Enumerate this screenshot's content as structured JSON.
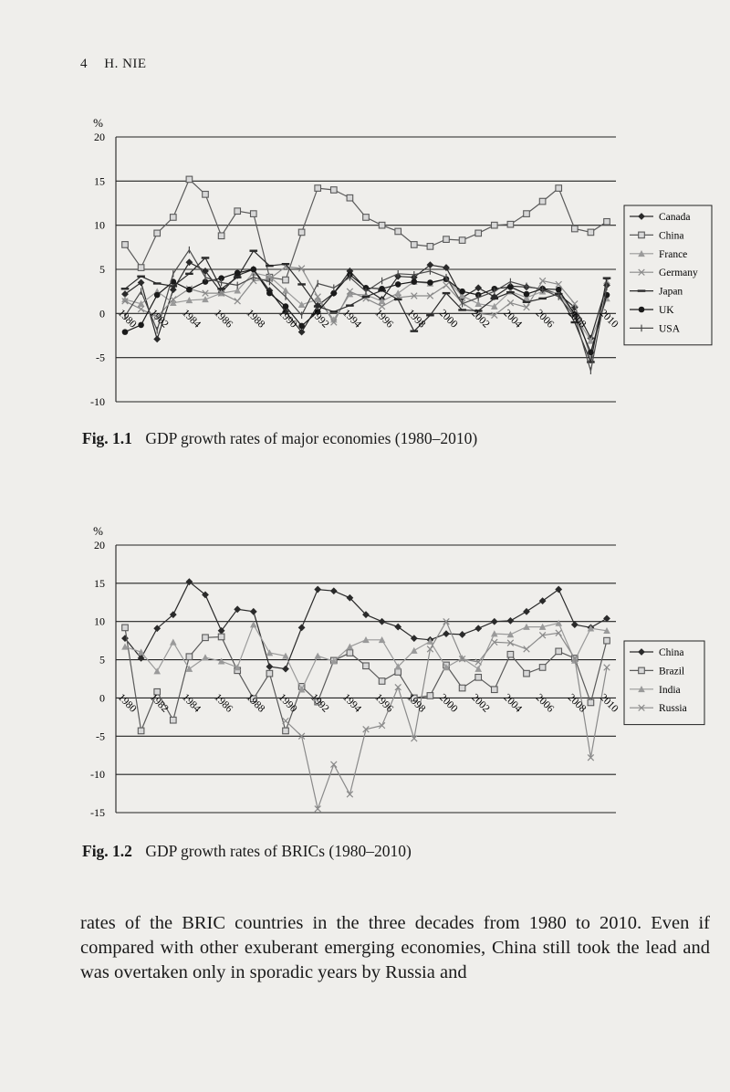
{
  "header": {
    "page_number": "4",
    "author": "H. NIE"
  },
  "figures": [
    {
      "caption_number": "Fig. 1.1",
      "caption_text": "GDP growth rates of major economies (1980–2010)",
      "chart_data": {
        "type": "line",
        "ylabel": "%",
        "ylim": [
          -10,
          20
        ],
        "yticks": [
          20,
          15,
          10,
          5,
          0,
          -5,
          -10
        ],
        "x": [
          1980,
          1981,
          1982,
          1983,
          1984,
          1985,
          1986,
          1987,
          1988,
          1989,
          1990,
          1991,
          1992,
          1993,
          1994,
          1995,
          1996,
          1997,
          1998,
          1999,
          2000,
          2001,
          2002,
          2003,
          2004,
          2005,
          2006,
          2007,
          2008,
          2009,
          2010
        ],
        "xtick_labels": [
          "1980",
          "1982",
          "1984",
          "1986",
          "1988",
          "1990",
          "1992",
          "1994",
          "1996",
          "1998",
          "2000",
          "2002",
          "2004",
          "2006",
          "2008",
          "2010"
        ],
        "grid": true,
        "legend_position": "right",
        "series": [
          {
            "name": "Canada",
            "marker": "diamond",
            "color": "#2a2a2a",
            "values": [
              2.2,
              3.5,
              -2.9,
              2.7,
              5.8,
              4.8,
              2.4,
              4.3,
              5.0,
              2.6,
              0.2,
              -2.1,
              0.9,
              2.3,
              4.8,
              2.8,
              1.6,
              4.2,
              4.1,
              5.5,
              5.2,
              1.8,
              2.9,
              1.9,
              3.1,
              3.0,
              2.8,
              2.2,
              0.7,
              -2.8,
              3.2
            ]
          },
          {
            "name": "China",
            "marker": "square",
            "color": "#5a5a5a",
            "values": [
              7.8,
              5.2,
              9.1,
              10.9,
              15.2,
              13.5,
              8.8,
              11.6,
              11.3,
              4.1,
              3.8,
              9.2,
              14.2,
              14.0,
              13.1,
              10.9,
              10.0,
              9.3,
              7.8,
              7.6,
              8.4,
              8.3,
              9.1,
              10.0,
              10.1,
              11.3,
              12.7,
              14.2,
              9.6,
              9.2,
              10.4
            ]
          },
          {
            "name": "France",
            "marker": "triangle",
            "color": "#9a9a9a",
            "values": [
              1.6,
              1.1,
              2.5,
              1.2,
              1.5,
              1.6,
              2.3,
              2.6,
              4.6,
              4.2,
              2.6,
              1.0,
              1.6,
              -0.7,
              2.2,
              2.1,
              1.4,
              2.3,
              3.6,
              3.4,
              3.9,
              2.0,
              1.1,
              0.8,
              2.5,
              1.8,
              2.5,
              2.3,
              -0.1,
              -3.1,
              1.7
            ]
          },
          {
            "name": "Germany",
            "marker": "x",
            "color": "#8a8a8a",
            "values": [
              1.4,
              0.5,
              -0.4,
              1.6,
              2.8,
              2.3,
              2.3,
              1.4,
              3.7,
              3.9,
              5.3,
              5.1,
              1.9,
              -1.0,
              2.5,
              1.7,
              0.8,
              1.8,
              2.0,
              2.0,
              3.2,
              1.2,
              0.0,
              -0.2,
              1.2,
              0.7,
              3.7,
              3.3,
              1.1,
              -5.1,
              3.7
            ]
          },
          {
            "name": "Japan",
            "marker": "dash",
            "color": "#2a2a2a",
            "values": [
              2.8,
              4.2,
              3.4,
              3.1,
              4.5,
              6.3,
              2.8,
              4.1,
              7.1,
              5.4,
              5.6,
              3.3,
              0.8,
              0.2,
              0.9,
              1.9,
              2.6,
              1.6,
              -2.0,
              -0.2,
              2.3,
              0.4,
              0.3,
              1.7,
              2.4,
              1.3,
              1.7,
              2.2,
              -1.0,
              -5.5,
              4.0
            ]
          },
          {
            "name": "UK",
            "marker": "circle",
            "color": "#1a1a1a",
            "values": [
              -2.1,
              -1.3,
              2.1,
              3.6,
              2.7,
              3.6,
              4.0,
              4.6,
              5.0,
              2.3,
              0.8,
              -1.4,
              0.2,
              2.3,
              4.4,
              2.9,
              2.8,
              3.3,
              3.6,
              3.5,
              3.9,
              2.5,
              2.1,
              2.8,
              3.0,
              2.2,
              2.8,
              2.7,
              -0.1,
              -4.4,
              2.1
            ]
          },
          {
            "name": "USA",
            "marker": "plus",
            "color": "#4a4a4a",
            "values": [
              -0.3,
              2.5,
              -1.9,
              4.5,
              7.2,
              4.1,
              3.5,
              3.2,
              4.1,
              3.6,
              1.9,
              -0.2,
              3.4,
              2.9,
              4.1,
              2.5,
              3.7,
              4.5,
              4.4,
              4.8,
              4.1,
              1.1,
              1.8,
              2.5,
              3.6,
              3.1,
              2.7,
              1.9,
              -0.3,
              -6.5,
              3.0
            ]
          }
        ]
      }
    },
    {
      "caption_number": "Fig. 1.2",
      "caption_text": "GDP growth rates of BRICs (1980–2010)",
      "chart_data": {
        "type": "line",
        "ylabel": "%",
        "ylim": [
          -15,
          20
        ],
        "yticks": [
          20,
          15,
          10,
          5,
          0,
          -5,
          -10,
          -15
        ],
        "x": [
          1980,
          1981,
          1982,
          1983,
          1984,
          1985,
          1986,
          1987,
          1988,
          1989,
          1990,
          1991,
          1992,
          1993,
          1994,
          1995,
          1996,
          1997,
          1998,
          1999,
          2000,
          2001,
          2002,
          2003,
          2004,
          2005,
          2006,
          2007,
          2008,
          2009,
          2010
        ],
        "xtick_labels": [
          "1980",
          "1982",
          "1984",
          "1986",
          "1988",
          "1990",
          "1992",
          "1994",
          "1996",
          "1998",
          "2000",
          "2002",
          "2004",
          "2006",
          "2008",
          "2010"
        ],
        "grid": true,
        "legend_position": "right",
        "series": [
          {
            "name": "China",
            "marker": "diamond",
            "color": "#2a2a2a",
            "values": [
              7.8,
              5.2,
              9.1,
              10.9,
              15.2,
              13.5,
              8.8,
              11.6,
              11.3,
              4.1,
              3.8,
              9.2,
              14.2,
              14.0,
              13.1,
              10.9,
              10.0,
              9.3,
              7.8,
              7.6,
              8.4,
              8.3,
              9.1,
              10.0,
              10.1,
              11.3,
              12.7,
              14.2,
              9.6,
              9.2,
              10.4
            ]
          },
          {
            "name": "Brazil",
            "marker": "square",
            "color": "#5a5a5a",
            "values": [
              9.2,
              -4.3,
              0.8,
              -2.9,
              5.4,
              7.9,
              8.0,
              3.6,
              -0.1,
              3.2,
              -4.3,
              1.5,
              -0.5,
              4.9,
              5.9,
              4.2,
              2.2,
              3.4,
              0.0,
              0.3,
              4.3,
              1.3,
              2.7,
              1.1,
              5.7,
              3.2,
              4.0,
              6.1,
              5.2,
              -0.6,
              7.5
            ]
          },
          {
            "name": "India",
            "marker": "triangle",
            "color": "#9a9a9a",
            "values": [
              6.7,
              6.0,
              3.5,
              7.3,
              3.8,
              5.3,
              4.8,
              4.0,
              9.6,
              5.9,
              5.5,
              1.1,
              5.5,
              4.8,
              6.7,
              7.6,
              7.6,
              4.1,
              6.2,
              7.4,
              4.0,
              5.2,
              3.8,
              8.4,
              8.3,
              9.3,
              9.3,
              9.8,
              4.9,
              9.1,
              8.8
            ]
          },
          {
            "name": "Russia",
            "marker": "x",
            "color": "#8a8a8a",
            "values": [
              null,
              null,
              null,
              null,
              null,
              null,
              null,
              null,
              null,
              null,
              -3.0,
              -5.0,
              -14.5,
              -8.7,
              -12.6,
              -4.1,
              -3.6,
              1.4,
              -5.3,
              6.4,
              10.0,
              5.1,
              4.7,
              7.3,
              7.2,
              6.4,
              8.2,
              8.5,
              5.2,
              -7.8,
              4.0
            ]
          }
        ]
      }
    }
  ],
  "body": {
    "paragraph": "rates of the BRIC countries in the three decades from 1980 to 2010. Even if compared with other exuberant emerging economies, China still took the lead and was overtaken only in sporadic years by Russia and"
  }
}
